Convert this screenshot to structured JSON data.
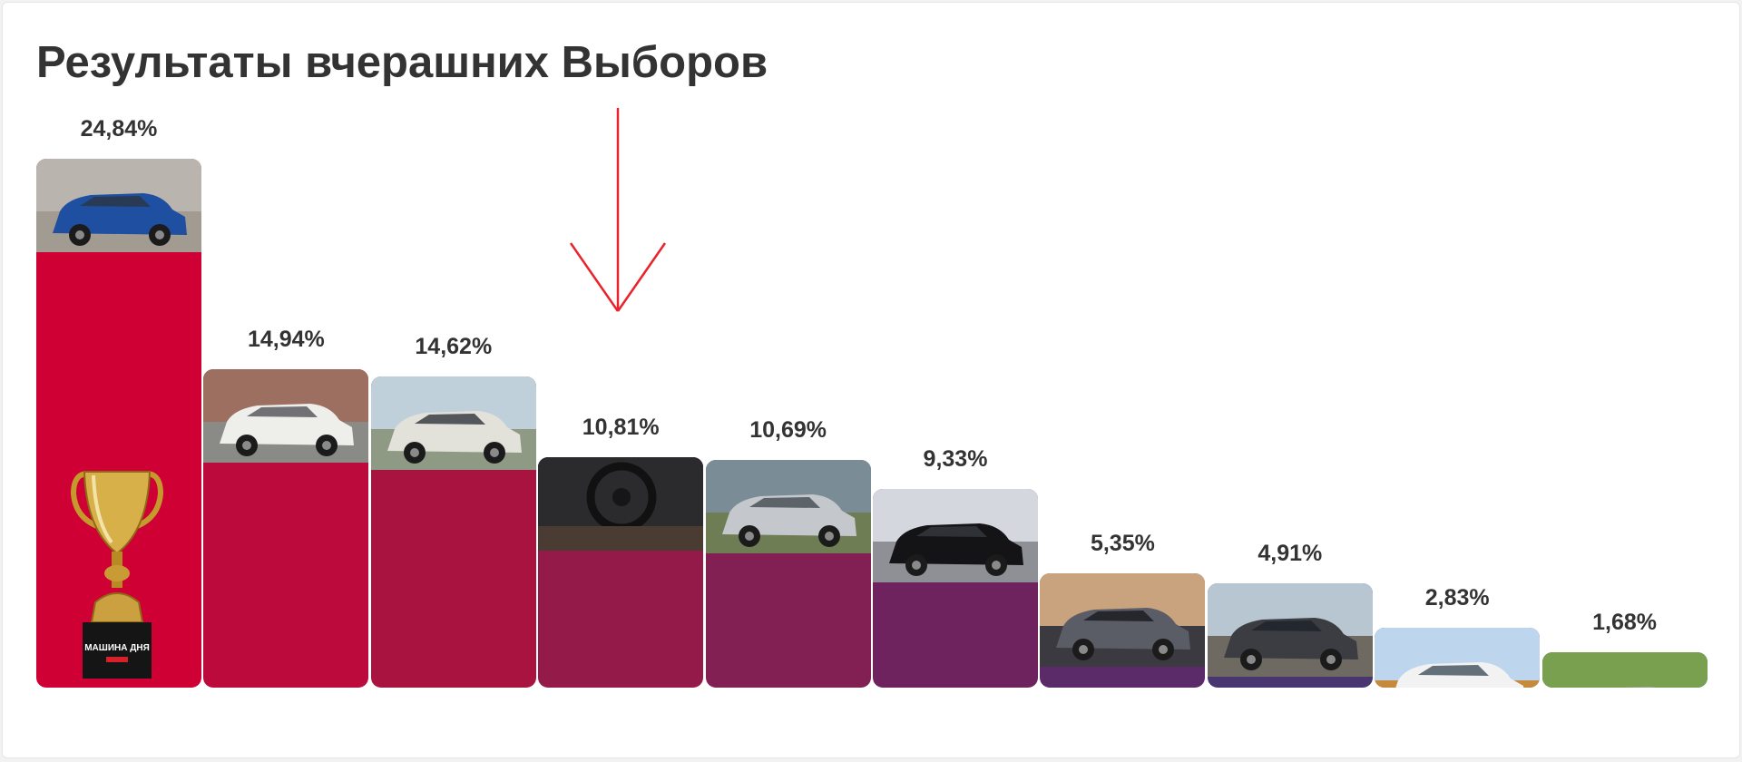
{
  "page": {
    "title": "Результаты вчерашних Выборов"
  },
  "trophy": {
    "icon": "trophy-icon",
    "label": "МАШИНА ДНЯ"
  },
  "annotation": {
    "icon": "arrow-down-icon",
    "color": "#e8232b",
    "points_to": "10,81%"
  },
  "chart_data": {
    "type": "bar",
    "title": "Результаты вчерашних Выборов",
    "categories": [
      "",
      "",
      "",
      "",
      "",
      "",
      "",
      "",
      "",
      ""
    ],
    "values": [
      24.84,
      14.94,
      14.62,
      10.81,
      10.69,
      9.33,
      5.35,
      4.91,
      2.83,
      1.68
    ],
    "labels": [
      "24,84%",
      "14,94%",
      "14,62%",
      "10,81%",
      "10,69%",
      "9,33%",
      "5,35%",
      "4,91%",
      "2,83%",
      "1,68%"
    ],
    "bar_colors": [
      "#cf0033",
      "#bd0a3d",
      "#a8133f",
      "#941a4a",
      "#822054",
      "#6e235e",
      "#5b2a68",
      "#473670",
      "#32417c",
      "#214a8e"
    ],
    "photos": [
      "blue-suv-photo",
      "white-sedan-photo",
      "white-hatchback-photo",
      "car-interior-photo",
      "silver-sedan-photo",
      "black-sedan-photo",
      "dark-crossover-photo",
      "gray-wagon-photo",
      "white-crossover-photo",
      "silver-suv-photo"
    ],
    "ylim": [
      0,
      24.84
    ],
    "grid": false,
    "legend": "none"
  }
}
